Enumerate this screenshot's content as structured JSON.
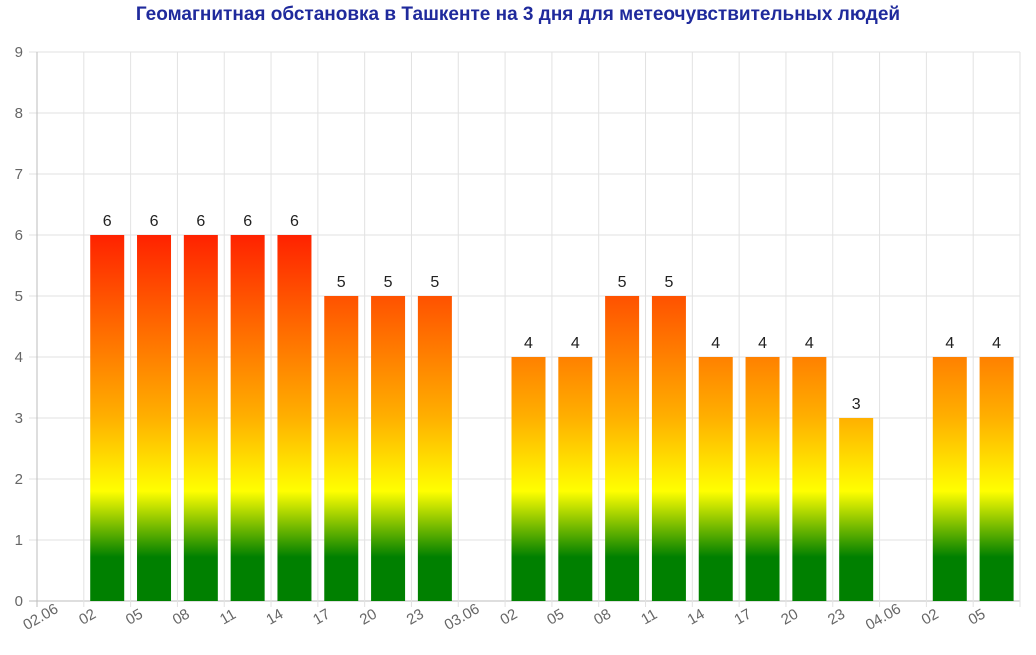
{
  "chart_data": {
    "type": "bar",
    "title": "Геомагнитная обстановка в Ташкенте на 3 дня для метеочувствительных людей",
    "xlabel": "",
    "ylabel": "",
    "ylim": [
      0,
      9
    ],
    "y_ticks": [
      0,
      1,
      2,
      3,
      4,
      5,
      6,
      7,
      8,
      9
    ],
    "grid": true,
    "categories": [
      "02.06",
      "02",
      "05",
      "08",
      "11",
      "14",
      "17",
      "20",
      "23",
      "03.06",
      "02",
      "05",
      "08",
      "11",
      "14",
      "17",
      "20",
      "23",
      "04.06",
      "02",
      "05"
    ],
    "values": [
      null,
      6,
      6,
      6,
      6,
      6,
      5,
      5,
      5,
      null,
      4,
      4,
      5,
      5,
      4,
      4,
      4,
      3,
      null,
      4,
      4
    ],
    "bar_gradient": [
      "#ff2200",
      "#ffa500",
      "#ffff00",
      "#008000"
    ]
  }
}
